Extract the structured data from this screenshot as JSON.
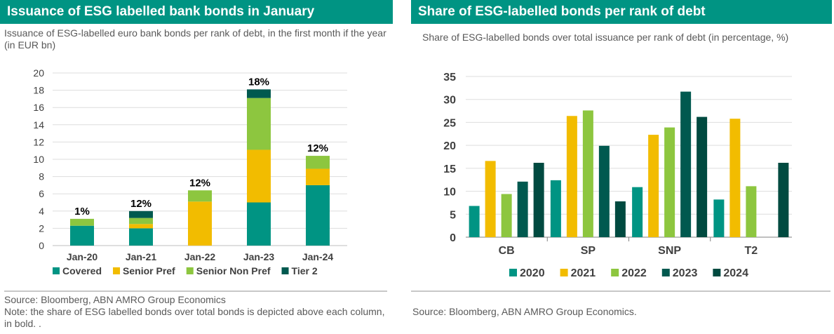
{
  "left": {
    "title": "Issuance of ESG labelled bank bonds in January",
    "subtitle": "Issuance of ESG-labelled euro bank bonds per rank of debt, in the first month if the year (in EUR bn)",
    "source": "Source: Bloomberg, ABN AMRO Group Economics",
    "note": "Note: the share of ESG labelled bonds over total bonds is depicted above each column, in bold. ."
  },
  "right": {
    "title": "Share of ESG-labelled bonds per rank of debt",
    "subtitle": "Share of ESG-labelled bonds over total issuance per rank of debt (in percentage, %)",
    "source": "Source: Bloomberg, ABN AMRO Group Economics."
  },
  "chart_data": [
    {
      "type": "bar",
      "stacked": true,
      "categories": [
        "Jan-20",
        "Jan-21",
        "Jan-22",
        "Jan-23",
        "Jan-24"
      ],
      "series": [
        {
          "name": "Covered",
          "color": "#009483",
          "values": [
            2.3,
            2.0,
            0,
            5.0,
            7.0
          ]
        },
        {
          "name": "Senior Pref",
          "color": "#f2bc00",
          "values": [
            0,
            0.5,
            5.1,
            6.1,
            1.9
          ]
        },
        {
          "name": "Senior Non Pref",
          "color": "#8dc63f",
          "values": [
            0.8,
            0.7,
            1.3,
            6.0,
            1.5
          ]
        },
        {
          "name": "Tier 2",
          "color": "#00594f",
          "values": [
            0,
            0.8,
            0,
            1.0,
            0
          ]
        }
      ],
      "bar_labels": [
        "1%",
        "12%",
        "12%",
        "18%",
        "12%"
      ],
      "yticks": [
        "0",
        "2",
        "4",
        "6",
        "8",
        "10",
        "12",
        "14",
        "16",
        "18",
        "20"
      ],
      "ylim": [
        0,
        20
      ],
      "grid": true,
      "legend": "bottom"
    },
    {
      "type": "bar",
      "categories": [
        "CB",
        "SP",
        "SNP",
        "T2"
      ],
      "series": [
        {
          "name": "2020",
          "color": "#009483",
          "values": [
            6.8,
            12.4,
            10.9,
            8.2
          ]
        },
        {
          "name": "2021",
          "color": "#f2bc00",
          "values": [
            16.6,
            26.4,
            22.3,
            25.8
          ]
        },
        {
          "name": "2022",
          "color": "#8dc63f",
          "values": [
            9.4,
            27.6,
            23.9,
            11.1
          ]
        },
        {
          "name": "2023",
          "color": "#00594f",
          "values": [
            12.1,
            19.9,
            31.7,
            0
          ]
        },
        {
          "name": "2024",
          "color": "#004a40",
          "values": [
            16.2,
            7.8,
            26.2,
            16.2
          ]
        }
      ],
      "yticks": [
        "0",
        "5",
        "10",
        "15",
        "20",
        "25",
        "30",
        "35"
      ],
      "ylim": [
        0,
        35
      ],
      "grid": true,
      "legend": "bottom"
    }
  ]
}
